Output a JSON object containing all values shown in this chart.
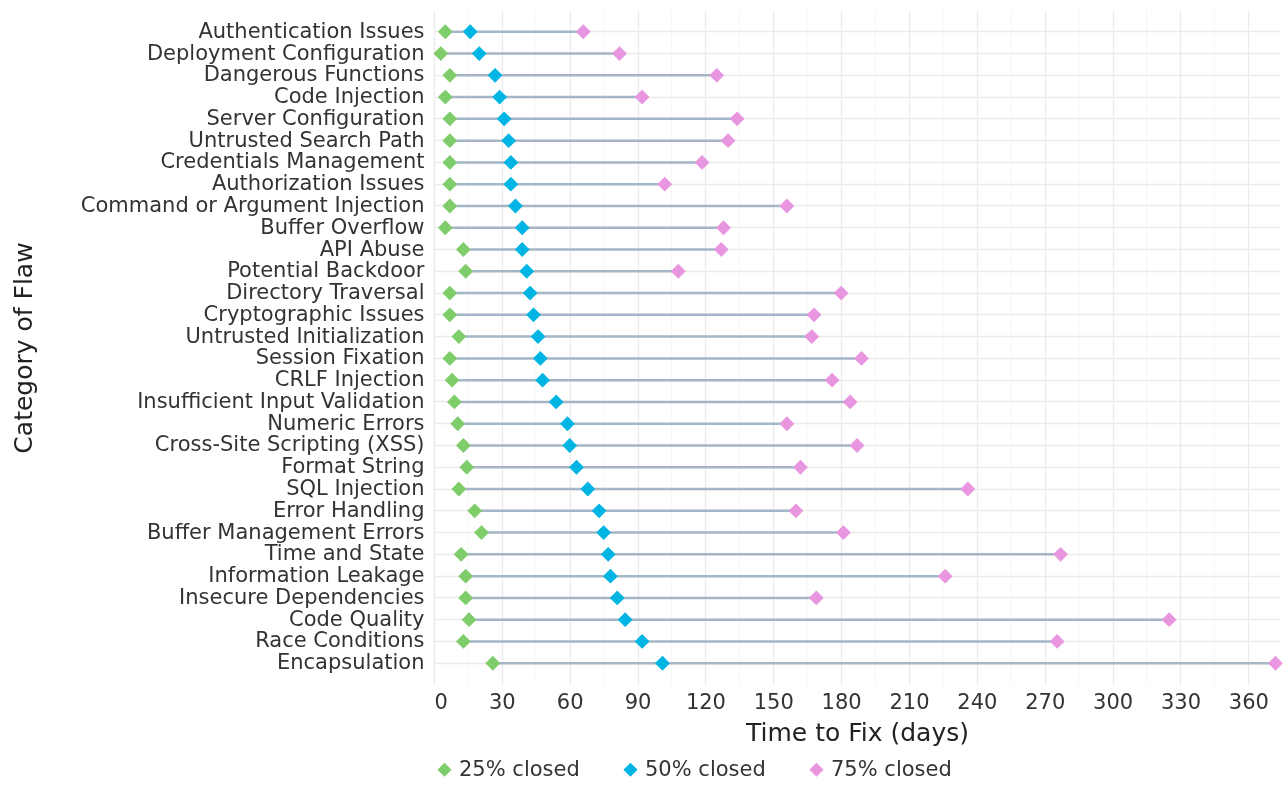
{
  "chart_data": {
    "type": "scatter",
    "xlabel": "Time to Fix (days)",
    "ylabel": "Category of Flaw",
    "categories": [
      "Authentication Issues",
      "Deployment Configuration",
      "Dangerous Functions",
      "Code Injection",
      "Server Configuration",
      "Untrusted Search Path",
      "Credentials Management",
      "Authorization Issues",
      "Command or Argument Injection",
      "Buffer Overflow",
      "API Abuse",
      "Potential Backdoor",
      "Directory Traversal",
      "Cryptographic Issues",
      "Untrusted Initialization",
      "Session Fixation",
      "CRLF Injection",
      "Insufficient Input Validation",
      "Numeric Errors",
      "Cross-Site Scripting (XSS)",
      "Format String",
      "SQL Injection",
      "Error Handling",
      "Buffer Management Errors",
      "Time and State",
      "Information Leakage",
      "Insecure Dependencies",
      "Code Quality",
      "Race Conditions",
      "Encapsulation"
    ],
    "orientation": "horizontal",
    "series": [
      {
        "name": "25% closed",
        "color": "#7fcc6a",
        "values": [
          5,
          3,
          7,
          5,
          7,
          7,
          7,
          7,
          7,
          5,
          13,
          14,
          7,
          7,
          11,
          7,
          8,
          9,
          10.5,
          13,
          14.5,
          11,
          18,
          21,
          12,
          14,
          14,
          15.5,
          13,
          26
        ]
      },
      {
        "name": "50% closed",
        "color": "#00b4e4",
        "values": [
          16,
          20,
          27,
          29,
          31,
          33,
          34,
          34,
          36,
          39,
          39,
          41,
          42.5,
          44,
          46,
          47,
          48,
          54,
          59,
          60,
          63,
          68,
          73,
          75,
          77,
          78,
          81,
          84.5,
          92,
          101
        ]
      },
      {
        "name": "75% closed",
        "color": "#e896e0",
        "values": [
          66,
          82,
          125,
          92,
          134,
          130,
          118.5,
          102,
          156,
          128,
          127,
          108,
          180,
          168,
          167,
          189,
          176,
          184,
          156,
          187,
          162,
          236,
          160,
          181,
          277,
          226,
          169,
          325,
          275.5,
          372
        ]
      }
    ],
    "xlim": [
      0,
      374
    ],
    "xticks": [
      0,
      30,
      60,
      90,
      120,
      150,
      180,
      210,
      240,
      270,
      300,
      330,
      360
    ],
    "grid": true,
    "legend": "bottom",
    "marker": "diamond"
  }
}
